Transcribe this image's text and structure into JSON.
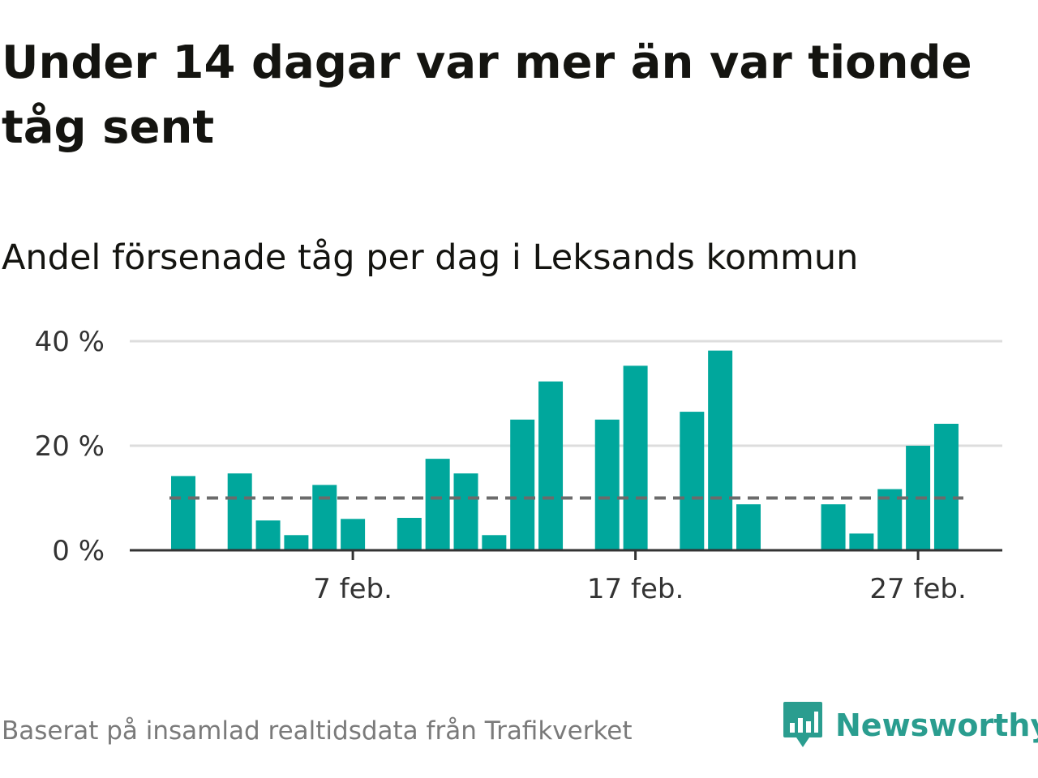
{
  "title": "Under 14 dagar var mer än var tionde tåg sent",
  "subtitle": "Andel försenade tåg per dag i Leksands kommun",
  "footer": "Baserat på insamlad realtidsdata från Trafikverket",
  "brand": "Newsworthy",
  "colors": {
    "bar": "#00a79c",
    "reference_line": "#6b6b6b",
    "grid": "#dddddd",
    "brand": "#2a9d8f"
  },
  "chart_data": {
    "type": "bar",
    "x": [
      "1 feb.",
      "2 feb.",
      "3 feb.",
      "4 feb.",
      "5 feb.",
      "6 feb.",
      "7 feb.",
      "8 feb.",
      "9 feb.",
      "10 feb.",
      "11 feb.",
      "12 feb.",
      "13 feb.",
      "14 feb.",
      "15 feb.",
      "16 feb.",
      "17 feb.",
      "18 feb.",
      "19 feb.",
      "20 feb.",
      "21 feb.",
      "22 feb.",
      "23 feb.",
      "24 feb.",
      "25 feb.",
      "26 feb.",
      "27 feb.",
      "28 feb."
    ],
    "values": [
      14.2,
      0,
      14.7,
      5.7,
      2.9,
      12.5,
      6.0,
      0,
      6.2,
      17.5,
      14.7,
      2.9,
      25.0,
      32.3,
      0,
      25.0,
      35.3,
      0,
      26.5,
      38.2,
      8.8,
      0,
      0,
      8.8,
      3.2,
      11.7,
      20.0,
      24.2
    ],
    "x_ticks": [
      "7 feb.",
      "17 feb.",
      "27 feb."
    ],
    "y_ticks": [
      "0 %",
      "20 %",
      "40 %"
    ],
    "ylim": [
      0,
      40
    ],
    "reference_line": 10,
    "grid": true
  }
}
